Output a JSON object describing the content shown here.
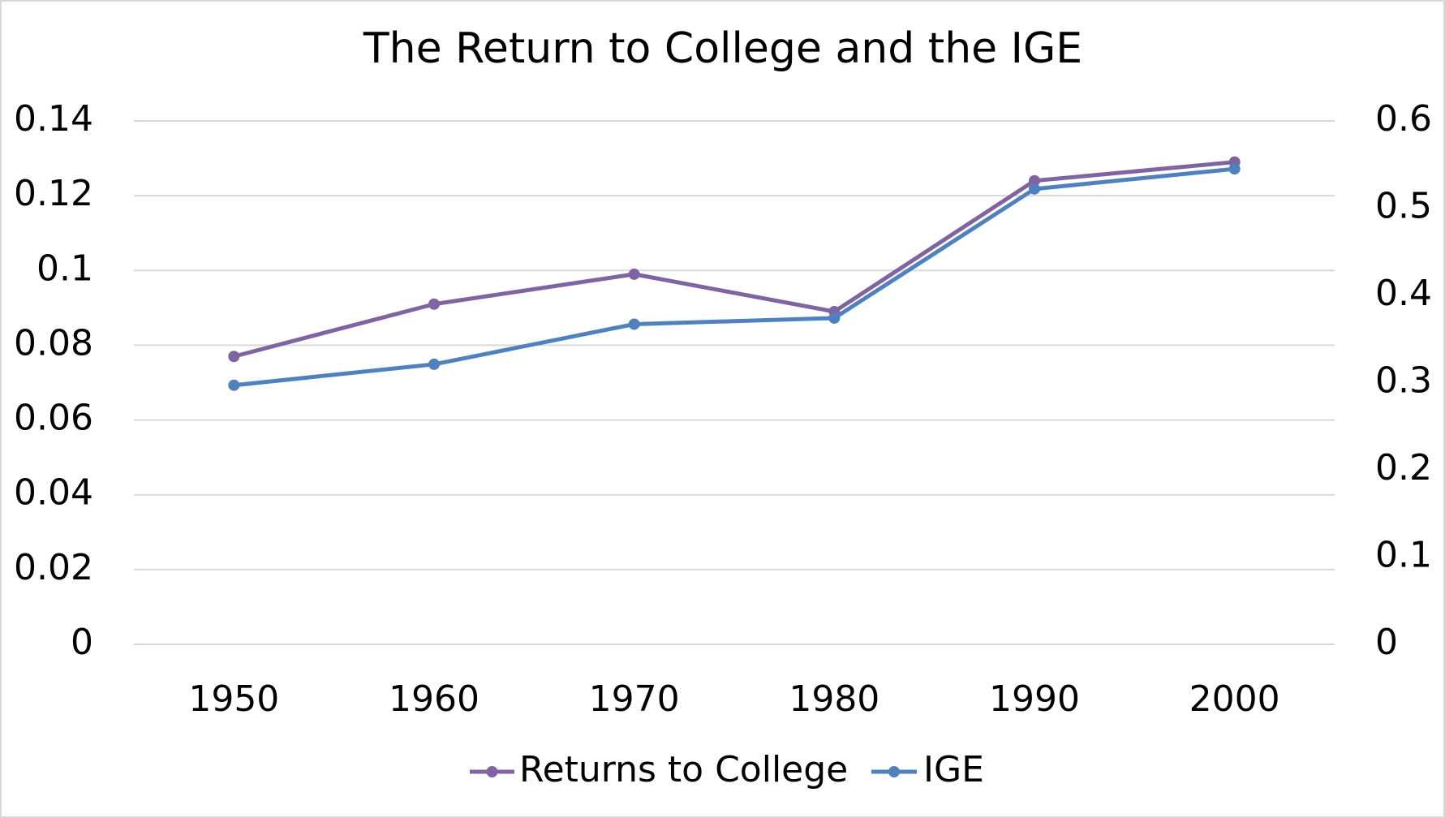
{
  "chart_data": {
    "type": "line",
    "title": "The Return to College and the IGE",
    "categories": [
      "1950",
      "1960",
      "1970",
      "1980",
      "1990",
      "2000"
    ],
    "series": [
      {
        "name": "Returns to College",
        "color": "#8064a2",
        "values": [
          0.077,
          0.091,
          0.099,
          0.089,
          0.124,
          0.129
        ]
      },
      {
        "name": "IGE",
        "color": "#4f81bd",
        "axis": "y2",
        "values": [
          0.297,
          0.321,
          0.367,
          0.374,
          0.522,
          0.545
        ]
      }
    ],
    "ylim": [
      0,
      0.14
    ],
    "yticks": [
      0,
      0.02,
      0.04,
      0.06,
      0.08,
      0.1,
      0.12,
      0.14
    ],
    "y2lim": [
      0,
      0.6
    ],
    "y2ticks": [
      0,
      0.1,
      0.2,
      0.3,
      0.4,
      0.5,
      0.6
    ],
    "grid": true,
    "legend": "bottom"
  }
}
